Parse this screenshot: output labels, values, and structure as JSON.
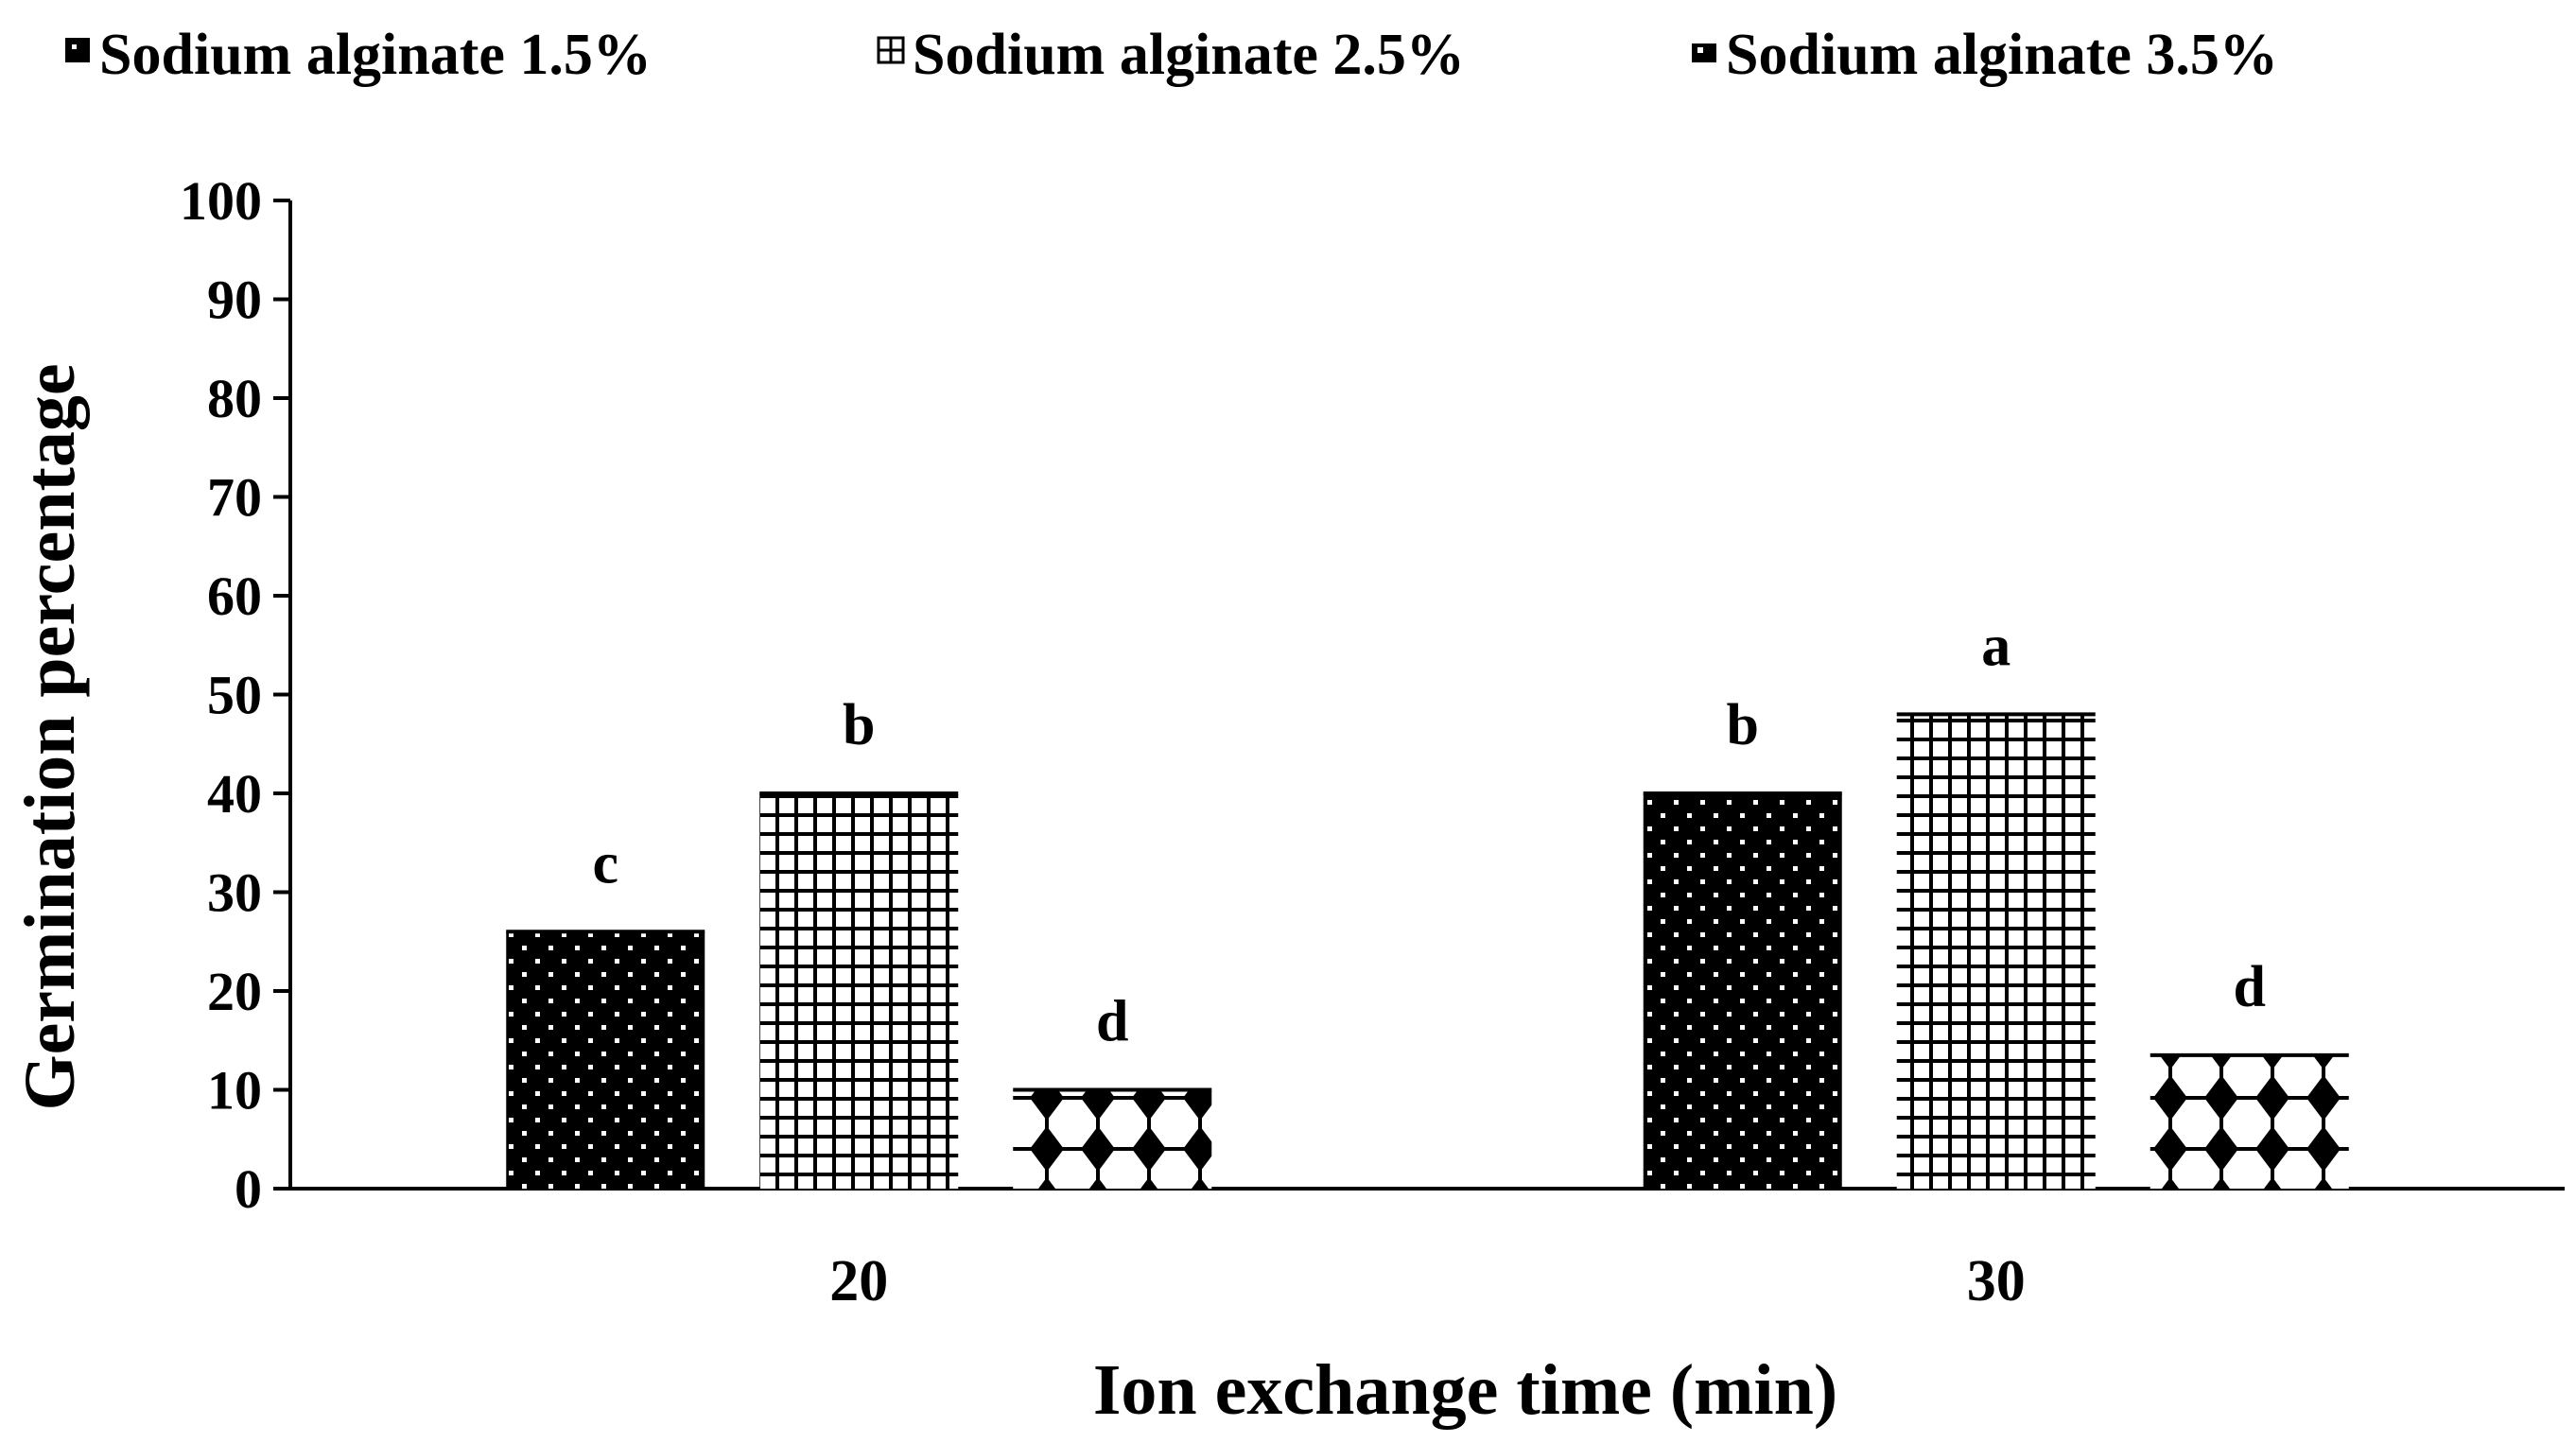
{
  "chart_data": {
    "type": "bar",
    "title": "",
    "xlabel": "Ion exchange time (min)",
    "ylabel": "Germination percentage",
    "categories": [
      "20",
      "30"
    ],
    "ylim": [
      0,
      100
    ],
    "yticks": [
      0,
      10,
      20,
      30,
      40,
      50,
      60,
      70,
      80,
      90,
      100
    ],
    "grid": false,
    "legend_position": "top",
    "series": [
      {
        "name": "Sodium alginate 1.5%",
        "values": [
          26,
          40
        ],
        "labels": [
          "c",
          "b"
        ],
        "pattern": "dots"
      },
      {
        "name": "Sodium alginate 2.5%",
        "values": [
          40,
          48
        ],
        "labels": [
          "b",
          "a"
        ],
        "pattern": "grid"
      },
      {
        "name": "Sodium alginate 3.5%",
        "values": [
          10,
          13.5
        ],
        "labels": [
          "d",
          "d"
        ],
        "pattern": "diamonds"
      }
    ]
  }
}
